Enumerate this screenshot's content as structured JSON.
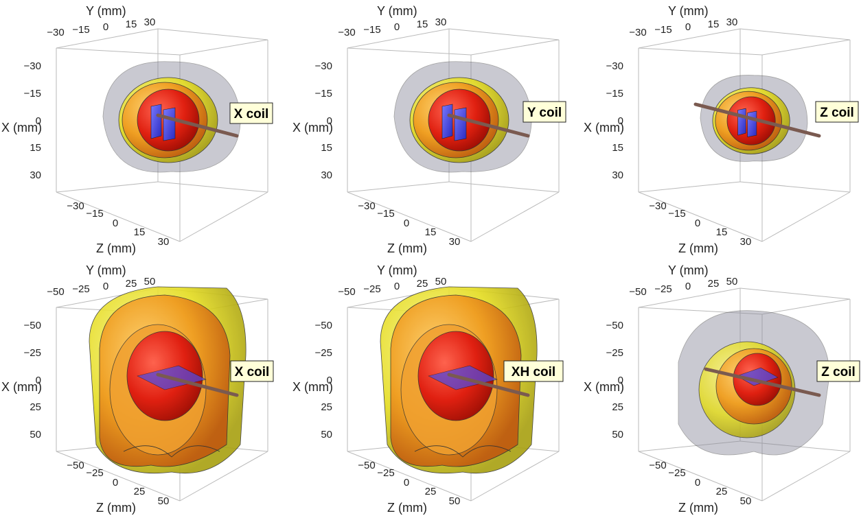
{
  "panels": [
    {
      "id": "top-left",
      "coil_label": "X coil",
      "axis_titles": {
        "y": "Y (mm)",
        "x": "X (mm)",
        "z": "Z (mm)"
      },
      "y_ticks": [
        "−30",
        "−15",
        "0",
        "15",
        "30"
      ],
      "x_ticks": [
        "−30",
        "−15",
        "0",
        "15",
        "30"
      ],
      "z_ticks": [
        "−30",
        "−15",
        "0",
        "15",
        "30"
      ]
    },
    {
      "id": "top-middle",
      "coil_label": "Y coil",
      "axis_titles": {
        "y": "Y (mm)",
        "x": "X (mm)",
        "z": "Z (mm)"
      },
      "y_ticks": [
        "−30",
        "−15",
        "0",
        "15",
        "30"
      ],
      "x_ticks": [
        "−30",
        "−15",
        "0",
        "15",
        "30"
      ],
      "z_ticks": [
        "−30",
        "−15",
        "0",
        "15",
        "30"
      ]
    },
    {
      "id": "top-right",
      "coil_label": "Z coil",
      "axis_titles": {
        "y": "Y (mm)",
        "x": "X (mm)",
        "z": "Z (mm)"
      },
      "y_ticks": [
        "−30",
        "−15",
        "0",
        "15",
        "30"
      ],
      "x_ticks": [
        "−30",
        "−15",
        "0",
        "15",
        "30"
      ],
      "z_ticks": [
        "−30",
        "−15",
        "0",
        "15",
        "30"
      ]
    },
    {
      "id": "bottom-left",
      "coil_label": "X coil",
      "axis_titles": {
        "y": "Y (mm)",
        "x": "X (mm)",
        "z": "Z (mm)"
      },
      "y_ticks": [
        "−50",
        "−25",
        "0",
        "25",
        "50"
      ],
      "x_ticks": [
        "−50",
        "−25",
        "0",
        "25",
        "50"
      ],
      "z_ticks": [
        "−50",
        "−25",
        "0",
        "25",
        "50"
      ]
    },
    {
      "id": "bottom-middle",
      "coil_label": "XH coil",
      "axis_titles": {
        "y": "Y (mm)",
        "x": "X (mm)",
        "z": "Z (mm)"
      },
      "y_ticks": [
        "−50",
        "−25",
        "0",
        "25",
        "50"
      ],
      "x_ticks": [
        "−50",
        "−25",
        "0",
        "25",
        "50"
      ],
      "z_ticks": [
        "−50",
        "−25",
        "0",
        "25",
        "50"
      ]
    },
    {
      "id": "bottom-right",
      "coil_label": "Z coil",
      "axis_titles": {
        "y": "Y (mm)",
        "x": "X (mm)",
        "z": "Z (mm)"
      },
      "y_ticks": [
        "−50",
        "−25",
        "0",
        "25",
        "50"
      ],
      "x_ticks": [
        "−50",
        "−25",
        "0",
        "25",
        "50"
      ],
      "z_ticks": [
        "−50",
        "−25",
        "0",
        "25",
        "50"
      ]
    }
  ],
  "colors": {
    "outer_shell": "#8a8a9a",
    "yellow_shell": "#e8e020",
    "orange_shell": "#f0a020",
    "red_core": "#e82010",
    "coil": "#4a4ae8",
    "rod": "#7a5a50",
    "label_bg": "#ffffd9"
  }
}
